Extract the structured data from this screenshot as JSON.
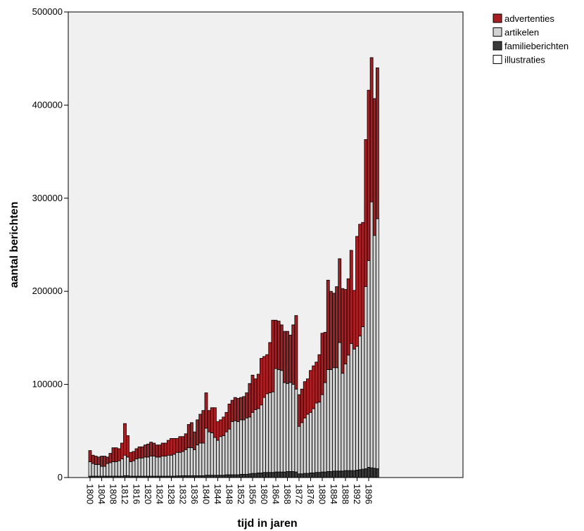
{
  "chart_data": {
    "type": "bar",
    "stacked": true,
    "title": "",
    "xlabel": "tijd in jaren",
    "ylabel": "aantal berichten",
    "ylim": [
      0,
      500000
    ],
    "yticks": [
      0,
      100000,
      200000,
      300000,
      400000,
      500000
    ],
    "ytick_labels": [
      "0",
      "100000",
      "200000",
      "300000",
      "400000",
      "500000"
    ],
    "grid": false,
    "legend_position": "top-right",
    "x": [
      1800,
      1801,
      1802,
      1803,
      1804,
      1805,
      1806,
      1807,
      1808,
      1809,
      1810,
      1811,
      1812,
      1813,
      1814,
      1815,
      1816,
      1817,
      1818,
      1819,
      1820,
      1821,
      1822,
      1823,
      1824,
      1825,
      1826,
      1827,
      1828,
      1829,
      1830,
      1831,
      1832,
      1833,
      1834,
      1835,
      1836,
      1837,
      1838,
      1839,
      1840,
      1841,
      1842,
      1843,
      1844,
      1845,
      1846,
      1847,
      1848,
      1849,
      1850,
      1851,
      1852,
      1853,
      1854,
      1855,
      1856,
      1857,
      1858,
      1859,
      1860,
      1861,
      1862,
      1863,
      1864,
      1865,
      1866,
      1867,
      1868,
      1869,
      1870,
      1871,
      1872,
      1873,
      1874,
      1875,
      1876,
      1877,
      1878,
      1879,
      1880,
      1881,
      1882,
      1883,
      1884,
      1885,
      1886,
      1887,
      1888,
      1889,
      1890,
      1891,
      1892,
      1893,
      1894,
      1895,
      1896,
      1897,
      1898,
      1899
    ],
    "xtick_labels": [
      "1800",
      "1804",
      "1808",
      "1812",
      "1816",
      "1820",
      "1824",
      "1828",
      "1832",
      "1836",
      "1840",
      "1844",
      "1848",
      "1852",
      "1856",
      "1860",
      "1864",
      "1868",
      "1872",
      "1876",
      "1880",
      "1884",
      "1888",
      "1892",
      "1896"
    ],
    "series": [
      {
        "name": "illustraties",
        "color": "#ffffff",
        "values": [
          0,
          0,
          0,
          0,
          0,
          0,
          0,
          0,
          0,
          0,
          0,
          0,
          0,
          0,
          0,
          0,
          0,
          0,
          0,
          0,
          0,
          0,
          0,
          0,
          0,
          0,
          0,
          0,
          0,
          0,
          0,
          0,
          0,
          0,
          0,
          0,
          0,
          0,
          0,
          0,
          0,
          0,
          0,
          0,
          0,
          0,
          0,
          0,
          0,
          0,
          0,
          0,
          0,
          0,
          0,
          0,
          0,
          0,
          0,
          0,
          0,
          0,
          0,
          0,
          0,
          0,
          0,
          0,
          0,
          0,
          0,
          0,
          0,
          0,
          0,
          0,
          0,
          0,
          0,
          0,
          0,
          0,
          0,
          0,
          0,
          0,
          0,
          0,
          0,
          0,
          0,
          0,
          0,
          0,
          0,
          0,
          0,
          0,
          0,
          0
        ]
      },
      {
        "name": "familieberichten",
        "color": "#3a3a3a",
        "values": [
          1500,
          1500,
          1500,
          1500,
          1500,
          1500,
          1500,
          1500,
          1500,
          1500,
          1500,
          1500,
          2000,
          2000,
          1500,
          1500,
          1500,
          1500,
          1500,
          1500,
          1500,
          1500,
          1500,
          1500,
          1500,
          1500,
          1500,
          1500,
          1500,
          1500,
          1800,
          1800,
          2000,
          2000,
          2000,
          2000,
          2000,
          2000,
          2000,
          2000,
          2500,
          2500,
          2500,
          2500,
          2500,
          2500,
          2500,
          3000,
          3000,
          3000,
          3000,
          3000,
          3500,
          3500,
          3500,
          4000,
          4500,
          4500,
          5000,
          5000,
          5500,
          5500,
          5500,
          5500,
          6000,
          6000,
          6000,
          6000,
          6500,
          6500,
          6500,
          6000,
          4000,
          4000,
          4500,
          4500,
          5000,
          5000,
          5500,
          5500,
          6000,
          6000,
          6500,
          6500,
          7000,
          7000,
          7000,
          7000,
          7500,
          7500,
          7500,
          7500,
          8000,
          8500,
          9000,
          9500,
          11000,
          10500,
          10000,
          9500
        ]
      },
      {
        "name": "artikelen",
        "color": "#d3d3d3",
        "values": [
          15500,
          13500,
          12500,
          12500,
          10500,
          10500,
          13500,
          14500,
          15500,
          15500,
          16500,
          18500,
          22000,
          20000,
          15500,
          16500,
          18500,
          19500,
          19500,
          20500,
          20500,
          21500,
          21500,
          20500,
          20500,
          21500,
          21500,
          22500,
          22500,
          23500,
          25200,
          25200,
          26000,
          28000,
          30000,
          30000,
          28000,
          33000,
          35000,
          35000,
          50500,
          46500,
          45500,
          40500,
          37500,
          41500,
          42500,
          46000,
          49000,
          57000,
          58000,
          57000,
          58500,
          58500,
          60500,
          61000,
          65500,
          68500,
          69000,
          73000,
          80500,
          84500,
          85500,
          86500,
          111000,
          110000,
          109000,
          96000,
          94500,
          95500,
          93500,
          89000,
          51000,
          55000,
          59500,
          63500,
          65000,
          69000,
          74500,
          75500,
          83000,
          96000,
          109500,
          109500,
          111000,
          111000,
          138000,
          105000,
          114500,
          124000,
          136500,
          130500,
          133000,
          143500,
          153000,
          195500,
          222000,
          285500,
          250000,
          268500
        ]
      },
      {
        "name": "advertenties",
        "color": "#a71e23",
        "values": [
          12000,
          9000,
          9000,
          8000,
          11000,
          11000,
          7000,
          10000,
          15000,
          15000,
          13000,
          17000,
          34000,
          23000,
          10000,
          10000,
          11000,
          12000,
          12000,
          13000,
          14000,
          15000,
          14000,
          13000,
          13000,
          14000,
          14000,
          16000,
          18000,
          17000,
          15000,
          17000,
          16000,
          17000,
          25000,
          27000,
          19000,
          27000,
          31000,
          35000,
          38000,
          23000,
          27000,
          32000,
          20000,
          18000,
          20000,
          21000,
          27000,
          23000,
          25000,
          25000,
          24000,
          25000,
          27000,
          36000,
          40000,
          33000,
          37000,
          50000,
          44000,
          42000,
          54000,
          77000,
          52000,
          52000,
          49000,
          55000,
          56000,
          51000,
          64000,
          79000,
          34000,
          36000,
          39000,
          38000,
          45000,
          46000,
          44000,
          51000,
          66000,
          54000,
          96000,
          84000,
          80000,
          87000,
          90000,
          91000,
          80000,
          82000,
          100000,
          63000,
          118000,
          120000,
          112000,
          158000,
          183000,
          155000,
          147000,
          162000
        ]
      }
    ]
  }
}
